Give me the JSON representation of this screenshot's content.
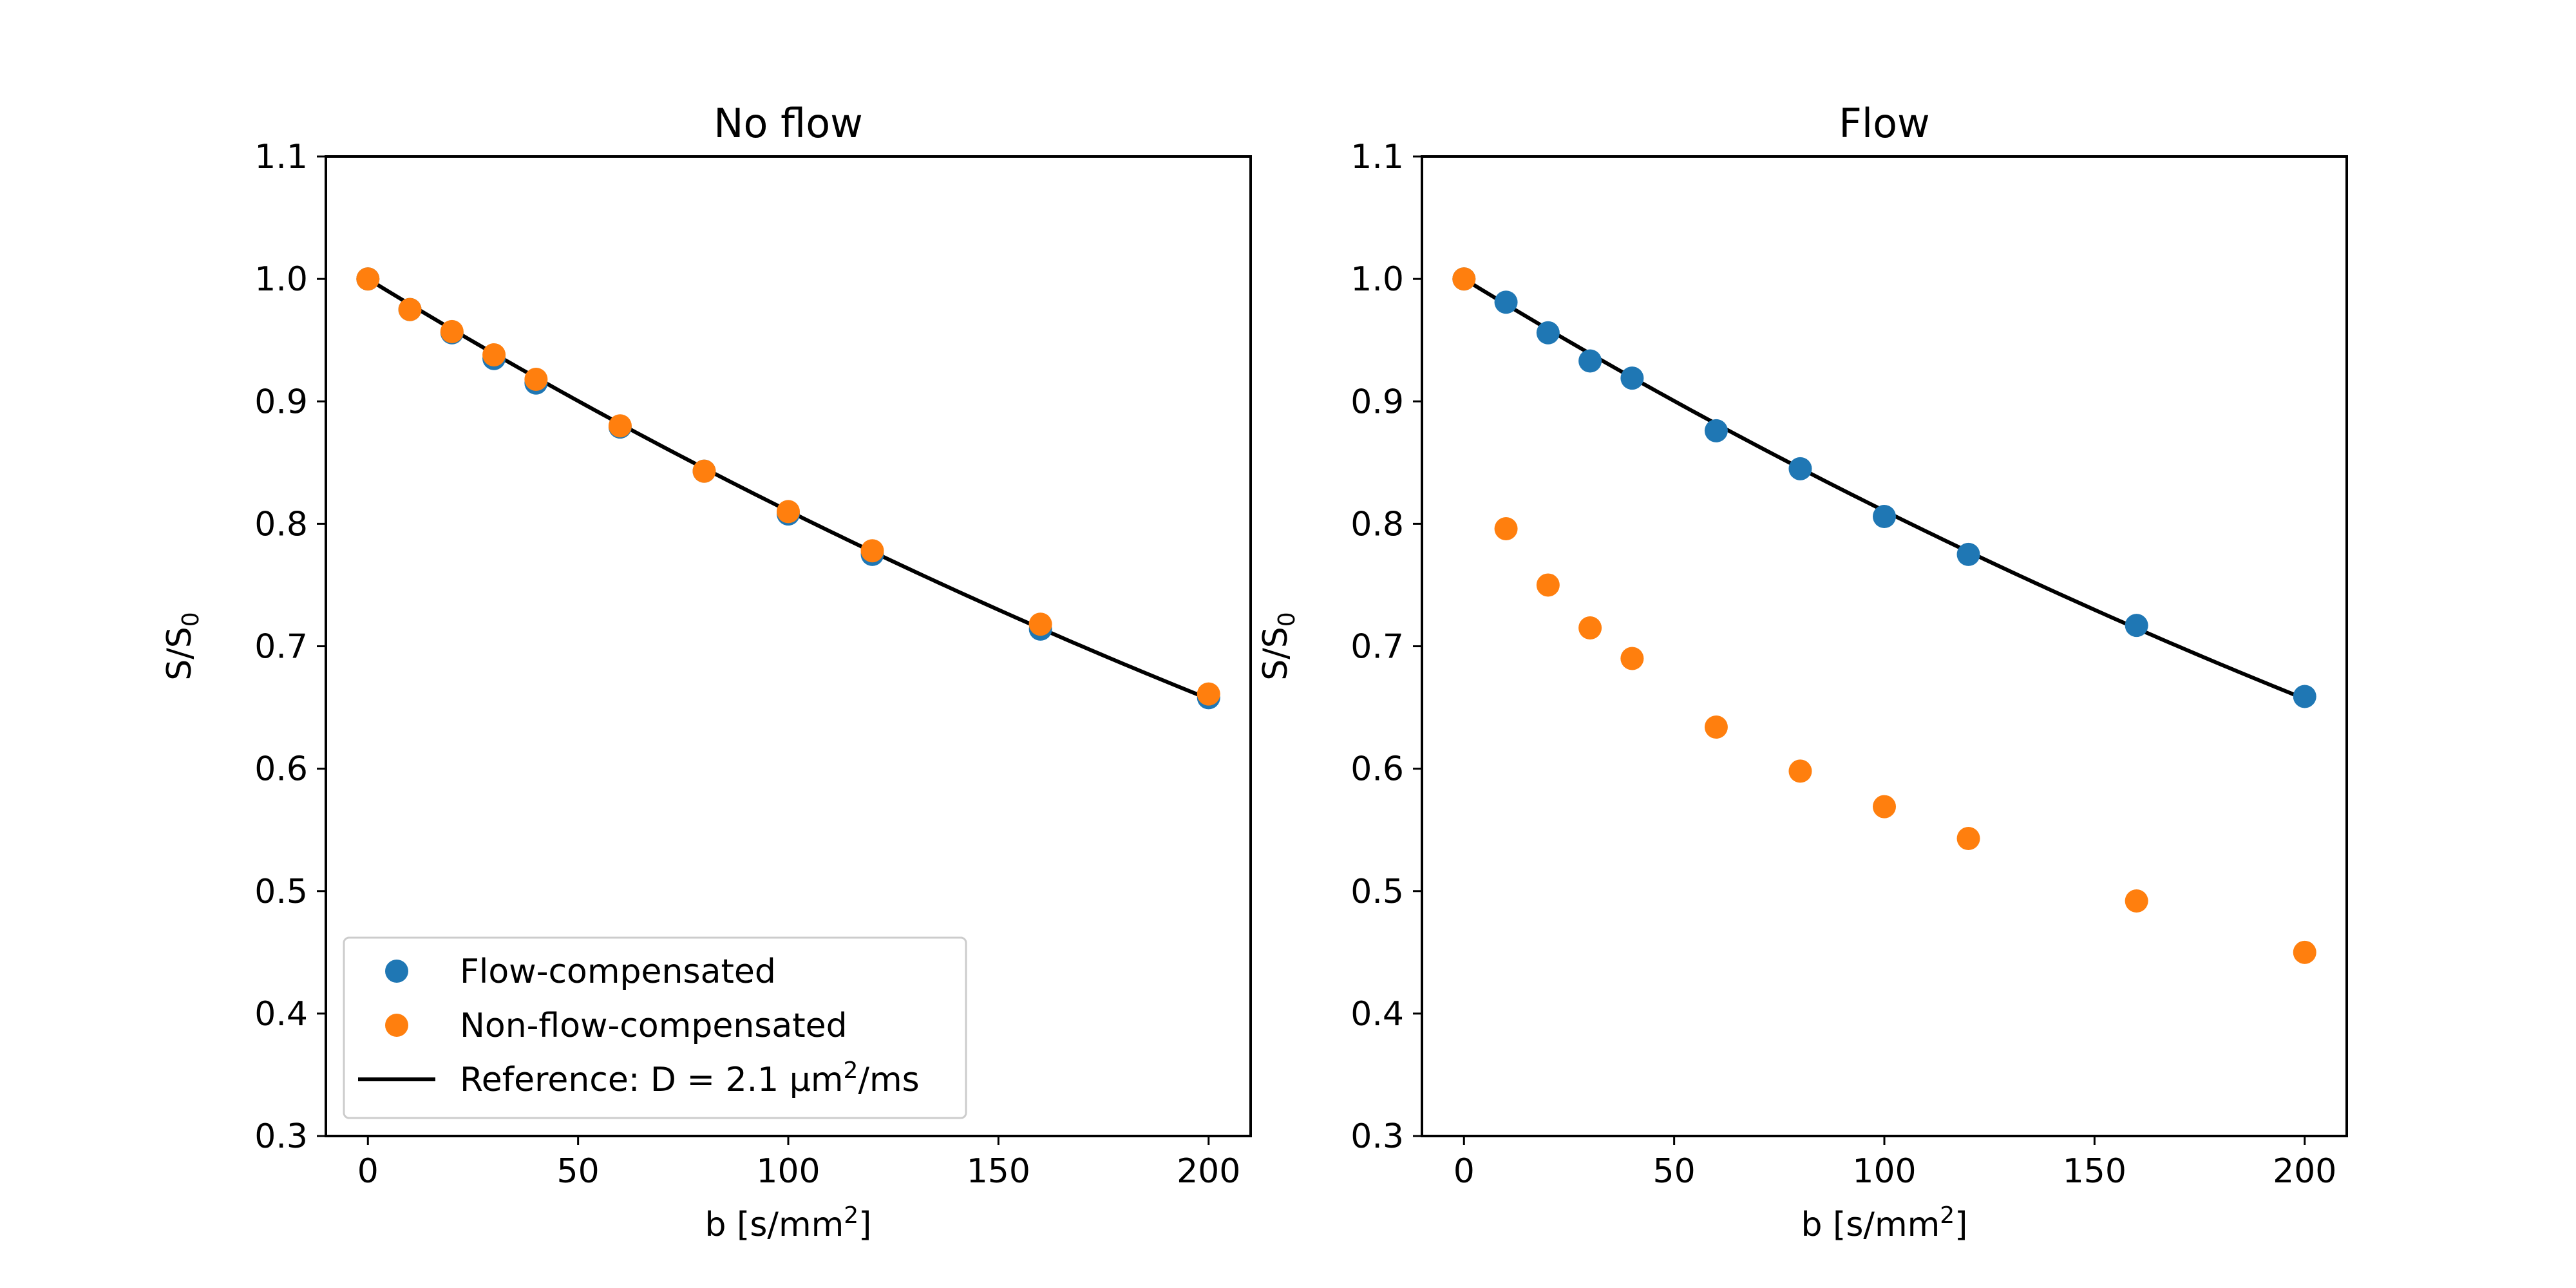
{
  "colors": {
    "series_fc": "#1f77b4",
    "series_nfc": "#ff7f0e",
    "reference": "#000000",
    "axes": "#000000",
    "legend_border": "#cccccc"
  },
  "legend": {
    "placement": "lower-left",
    "entries": [
      {
        "key": "fc",
        "label": "Flow-compensated",
        "marker": "circle"
      },
      {
        "key": "nfc",
        "label": "Non-flow-compensated",
        "marker": "circle"
      },
      {
        "key": "ref",
        "prefix": "Reference: D = 2.1 μm",
        "sup": "2",
        "suffix": "/ms",
        "marker": "line"
      }
    ]
  },
  "chart_data": [
    {
      "type": "scatter",
      "title": "No flow",
      "xlabel": {
        "base": "b [s/mm",
        "sup": "2",
        "end": "]"
      },
      "ylabel": {
        "base": "S/S",
        "sub": "0"
      },
      "xlim": [
        -10,
        210
      ],
      "ylim": [
        0.3,
        1.1
      ],
      "xticks": [
        0,
        50,
        100,
        150,
        200
      ],
      "yticks": [
        0.3,
        0.4,
        0.5,
        0.6,
        0.7,
        0.8,
        0.9,
        1.0,
        1.1
      ],
      "has_legend": true,
      "series": [
        {
          "key": "fc",
          "name": "Flow-compensated",
          "x": [
            0,
            10,
            20,
            30,
            40,
            60,
            80,
            100,
            120,
            160,
            200
          ],
          "y": [
            1.0,
            0.975,
            0.956,
            0.935,
            0.915,
            0.879,
            0.843,
            0.808,
            0.775,
            0.714,
            0.658
          ]
        },
        {
          "key": "nfc",
          "name": "Non-flow-compensated",
          "x": [
            0,
            10,
            20,
            30,
            40,
            60,
            80,
            100,
            120,
            160,
            200
          ],
          "y": [
            1.0,
            0.975,
            0.957,
            0.938,
            0.918,
            0.88,
            0.843,
            0.81,
            0.778,
            0.718,
            0.661
          ]
        }
      ],
      "reference": {
        "name": "Reference: D = 2.1 μm²/ms",
        "D": 0.0021,
        "x_start": 0,
        "x_end": 200
      }
    },
    {
      "type": "scatter",
      "title": "Flow",
      "xlabel": {
        "base": "b [s/mm",
        "sup": "2",
        "end": "]"
      },
      "ylabel": {
        "base": "S/S",
        "sub": "0"
      },
      "xlim": [
        -10,
        210
      ],
      "ylim": [
        0.3,
        1.1
      ],
      "xticks": [
        0,
        50,
        100,
        150,
        200
      ],
      "yticks": [
        0.3,
        0.4,
        0.5,
        0.6,
        0.7,
        0.8,
        0.9,
        1.0,
        1.1
      ],
      "has_legend": false,
      "series": [
        {
          "key": "fc",
          "name": "Flow-compensated",
          "x": [
            0,
            10,
            20,
            30,
            40,
            60,
            80,
            100,
            120,
            160,
            200
          ],
          "y": [
            1.0,
            0.981,
            0.956,
            0.933,
            0.919,
            0.876,
            0.845,
            0.806,
            0.775,
            0.717,
            0.659
          ]
        },
        {
          "key": "nfc",
          "name": "Non-flow-compensated",
          "x": [
            0,
            10,
            20,
            30,
            40,
            60,
            80,
            100,
            120,
            160,
            200
          ],
          "y": [
            1.0,
            0.796,
            0.75,
            0.715,
            0.69,
            0.634,
            0.598,
            0.569,
            0.543,
            0.492,
            0.45
          ]
        }
      ],
      "reference": {
        "name": "Reference: D = 2.1 μm²/ms",
        "D": 0.0021,
        "x_start": 0,
        "x_end": 200
      }
    }
  ]
}
